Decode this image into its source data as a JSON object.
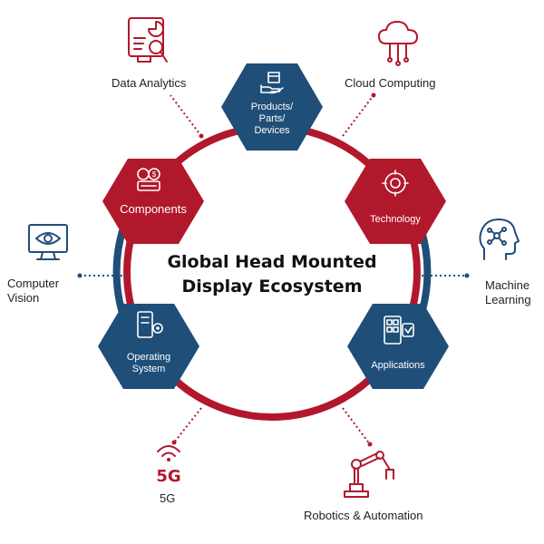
{
  "center": {
    "title_line1": "Global Head Mounted",
    "title_line2": "Display Ecosystem"
  },
  "hexagons": {
    "products": {
      "line1": "Products/",
      "line2": "Parts/",
      "line3": "Devices"
    },
    "components": {
      "label": "Components"
    },
    "technology": {
      "label": "Technology"
    },
    "operating_system": {
      "line1": "Operating",
      "line2": "System"
    },
    "applications": {
      "label": "Applications"
    }
  },
  "outer": {
    "data_analytics": "Data Analytics",
    "cloud_computing": "Cloud Computing",
    "computer_vision_line1": "Computer",
    "computer_vision_line2": "Vision",
    "machine_learning_line1": "Machine",
    "machine_learning_line2": "Learning",
    "fiveg": "5G",
    "fiveg_icon_text": "5G",
    "robotics": "Robotics & Automation"
  },
  "colors": {
    "red": "#b2182b",
    "navy": "#1f4e79"
  }
}
